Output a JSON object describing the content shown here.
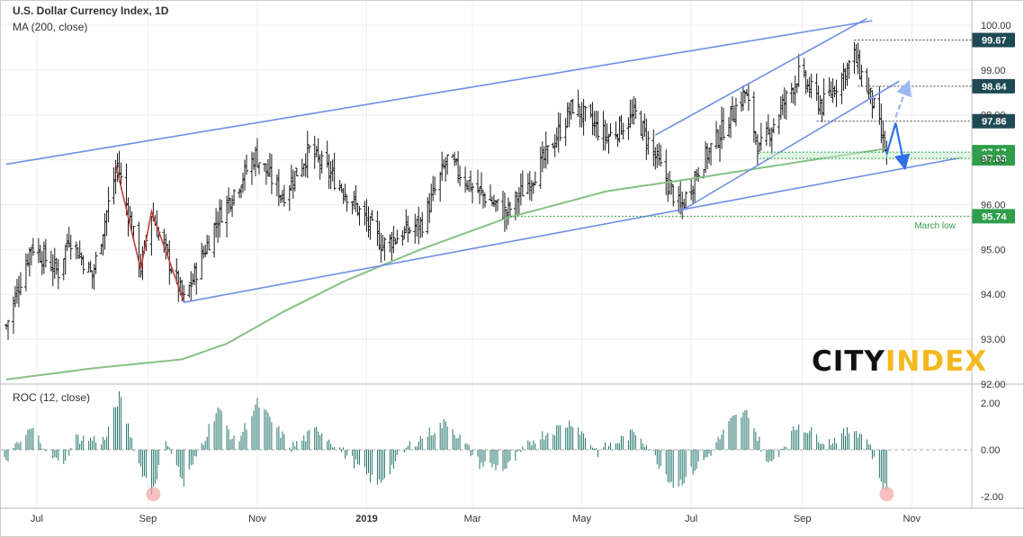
{
  "colors": {
    "price_bars": "#1a1a1a",
    "channel_lines": "#6f8ee6",
    "ma_line": "#86c184",
    "roc_bars": "#26766e",
    "projection_arrow": "#2f6fe8",
    "head_shoulders": "#c2403f",
    "level_label_dark": "#1f4a55",
    "level_label_green": "#2e9e4a",
    "march_low_text": "#2e9e4a",
    "roc_highlight": "#f2a5a5",
    "grid": "#eeeeee",
    "axis_text": "#333333"
  },
  "header": {
    "title": "U.S. Dollar Currency Index, 1D",
    "indicator": "MA (200, close)",
    "sub_indicator": "ROC (12, close)"
  },
  "logo": {
    "part1": "CITY",
    "part2": "INDEX"
  },
  "chart_data": [
    {
      "type": "ohlc",
      "title": "U.S. Dollar Currency Index, 1D",
      "x_tick_labels": [
        "Jul",
        "Sep",
        "Nov",
        "2019",
        "Mar",
        "May",
        "Jul",
        "Sep",
        "Nov"
      ],
      "x_range": [
        "2018-06-13",
        "2019-12-03"
      ],
      "ylim": [
        91.8,
        100.1
      ],
      "y_tick_labels": [
        "92.00",
        "93.00",
        "94.00",
        "95.00",
        "96.00",
        "97.00",
        "98.00",
        "99.00",
        "100.00"
      ],
      "grid": true,
      "price_keypoints": [
        {
          "date": "2018-06-14",
          "close": 93.3
        },
        {
          "date": "2018-06-28",
          "close": 95.1
        },
        {
          "date": "2018-07-13",
          "close": 94.5
        },
        {
          "date": "2018-07-19",
          "close": 95.3
        },
        {
          "date": "2018-08-01",
          "close": 94.4
        },
        {
          "date": "2018-08-15",
          "close": 96.9
        },
        {
          "date": "2018-08-28",
          "close": 94.6
        },
        {
          "date": "2018-09-03",
          "close": 95.8
        },
        {
          "date": "2018-09-21",
          "close": 93.85
        },
        {
          "date": "2018-10-10",
          "close": 95.7
        },
        {
          "date": "2018-10-31",
          "close": 97.1
        },
        {
          "date": "2018-11-15",
          "close": 96.2
        },
        {
          "date": "2018-11-30",
          "close": 97.2
        },
        {
          "date": "2018-12-20",
          "close": 96.3
        },
        {
          "date": "2019-01-10",
          "close": 95.1
        },
        {
          "date": "2019-02-01",
          "close": 95.6
        },
        {
          "date": "2019-02-15",
          "close": 97.0
        },
        {
          "date": "2019-03-01",
          "close": 96.4
        },
        {
          "date": "2019-03-20",
          "close": 95.8
        },
        {
          "date": "2019-04-10",
          "close": 97.0
        },
        {
          "date": "2019-04-26",
          "close": 98.2
        },
        {
          "date": "2019-05-15",
          "close": 97.5
        },
        {
          "date": "2019-05-31",
          "close": 98.0
        },
        {
          "date": "2019-06-14",
          "close": 96.8
        },
        {
          "date": "2019-06-25",
          "close": 95.9
        },
        {
          "date": "2019-07-05",
          "close": 96.8
        },
        {
          "date": "2019-07-31",
          "close": 98.5
        },
        {
          "date": "2019-08-08",
          "close": 97.2
        },
        {
          "date": "2019-08-30",
          "close": 98.9
        },
        {
          "date": "2019-09-12",
          "close": 98.2
        },
        {
          "date": "2019-09-30",
          "close": 99.3
        },
        {
          "date": "2019-10-10",
          "close": 98.3
        },
        {
          "date": "2019-10-18",
          "close": 97.1
        }
      ],
      "ma200_keypoints": [
        {
          "date": "2018-06-14",
          "value": 92.1
        },
        {
          "date": "2018-08-01",
          "value": 92.35
        },
        {
          "date": "2018-09-20",
          "value": 92.55
        },
        {
          "date": "2018-10-15",
          "value": 92.9
        },
        {
          "date": "2018-11-15",
          "value": 93.6
        },
        {
          "date": "2018-12-20",
          "value": 94.3
        },
        {
          "date": "2019-01-31",
          "value": 95.0
        },
        {
          "date": "2019-03-20",
          "value": 95.7
        },
        {
          "date": "2019-05-15",
          "value": 96.3
        },
        {
          "date": "2019-07-05",
          "value": 96.6
        },
        {
          "date": "2019-08-30",
          "value": 96.95
        },
        {
          "date": "2019-10-18",
          "value": 97.25
        }
      ],
      "levels": [
        {
          "label": "99.67",
          "value": 99.67,
          "from": "2019-09-30",
          "style": "dark"
        },
        {
          "label": "98.64",
          "value": 98.64,
          "from": "2019-10-02",
          "style": "dark"
        },
        {
          "label": "97.86",
          "value": 97.86,
          "from": "2019-09-09",
          "style": "dark"
        },
        {
          "label": "97.17",
          "value": 97.17,
          "from": "2019-08-08",
          "style": "green"
        },
        {
          "label": "97.03",
          "value": 97.03,
          "from": "2019-08-08",
          "style": "green"
        },
        {
          "label": "95.74",
          "value": 95.74,
          "from": "2019-03-20",
          "style": "green"
        }
      ],
      "annotations": [
        {
          "text": "March low",
          "date": "2019-11-14",
          "value": 95.55
        }
      ],
      "trendlines": [
        {
          "from": {
            "date": "2018-06-14",
            "value": 96.9
          },
          "to": {
            "date": "2019-10-10",
            "value": 100.1
          }
        },
        {
          "from": {
            "date": "2018-09-21",
            "value": 93.82
          },
          "to": {
            "date": "2019-11-29",
            "value": 97.05
          }
        },
        {
          "from": {
            "date": "2019-06-11",
            "value": 97.55
          },
          "to": {
            "date": "2019-10-07",
            "value": 100.15
          }
        },
        {
          "from": {
            "date": "2019-06-25",
            "value": 95.85
          },
          "to": {
            "date": "2019-10-25",
            "value": 98.75
          }
        }
      ],
      "head_and_shoulders": [
        {
          "date": "2018-08-14",
          "value": 96.9
        },
        {
          "date": "2018-08-28",
          "value": 94.55
        },
        {
          "date": "2018-09-03",
          "value": 95.85
        },
        {
          "date": "2018-09-21",
          "value": 93.85
        }
      ],
      "projection": {
        "solid": [
          {
            "date": "2019-10-18",
            "value": 97.12
          },
          {
            "date": "2019-10-23",
            "value": 97.82
          },
          {
            "date": "2019-10-28",
            "value": 96.85
          }
        ],
        "dashed": [
          {
            "date": "2019-10-23",
            "value": 97.95
          },
          {
            "date": "2019-10-30",
            "value": 98.7
          }
        ]
      }
    },
    {
      "type": "bar",
      "title": "ROC (12, close)",
      "ylim": [
        -2.6,
        2.6
      ],
      "y_tick_labels": [
        "2.00",
        "0.00",
        "-2.00"
      ],
      "zero_line": "dashed",
      "roc_keypoints": [
        {
          "date": "2018-06-13",
          "value": -0.5
        },
        {
          "date": "2018-06-28",
          "value": 0.9
        },
        {
          "date": "2018-07-14",
          "value": -0.7
        },
        {
          "date": "2018-07-23",
          "value": 0.5
        },
        {
          "date": "2018-08-08",
          "value": 0.4
        },
        {
          "date": "2018-08-16",
          "value": 2.3
        },
        {
          "date": "2018-08-27",
          "value": -0.6
        },
        {
          "date": "2018-09-03",
          "value": -1.8
        },
        {
          "date": "2018-09-12",
          "value": 0.4
        },
        {
          "date": "2018-09-21",
          "value": -1.5
        },
        {
          "date": "2018-10-10",
          "value": 1.8
        },
        {
          "date": "2018-10-20",
          "value": 0.2
        },
        {
          "date": "2018-11-01",
          "value": 2.0
        },
        {
          "date": "2018-11-20",
          "value": 0.1
        },
        {
          "date": "2018-12-05",
          "value": 0.9
        },
        {
          "date": "2019-01-07",
          "value": -1.5
        },
        {
          "date": "2019-01-25",
          "value": 0.2
        },
        {
          "date": "2019-02-15",
          "value": 1.2
        },
        {
          "date": "2019-03-05",
          "value": -0.6
        },
        {
          "date": "2019-03-20",
          "value": -0.8
        },
        {
          "date": "2019-04-05",
          "value": 0.5
        },
        {
          "date": "2019-04-26",
          "value": 1.2
        },
        {
          "date": "2019-05-10",
          "value": -0.1
        },
        {
          "date": "2019-06-01",
          "value": 0.8
        },
        {
          "date": "2019-06-22",
          "value": -1.6
        },
        {
          "date": "2019-07-10",
          "value": -0.3
        },
        {
          "date": "2019-07-24",
          "value": 1.3
        },
        {
          "date": "2019-08-02",
          "value": 1.6
        },
        {
          "date": "2019-08-13",
          "value": -0.7
        },
        {
          "date": "2019-08-30",
          "value": 1.1
        },
        {
          "date": "2019-09-15",
          "value": 0.3
        },
        {
          "date": "2019-09-30",
          "value": 0.9
        },
        {
          "date": "2019-10-08",
          "value": 0.4
        },
        {
          "date": "2019-10-12",
          "value": -0.8
        },
        {
          "date": "2019-10-18",
          "value": -1.8
        }
      ],
      "highlights": [
        {
          "date": "2018-09-04",
          "value": -1.9
        },
        {
          "date": "2019-10-18",
          "value": -1.9
        }
      ]
    }
  ]
}
